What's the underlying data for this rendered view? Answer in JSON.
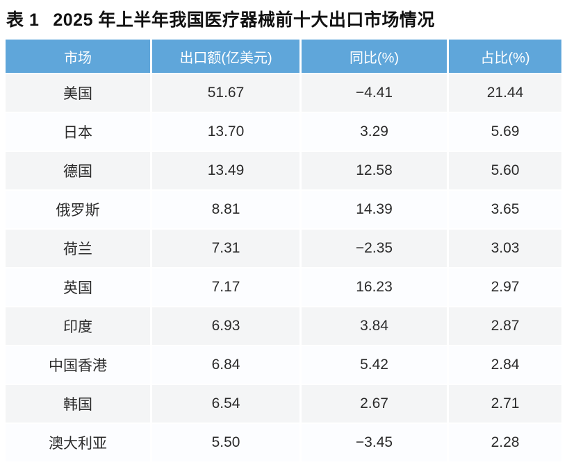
{
  "chart_data": {
    "type": "table",
    "caption_label": "表 1",
    "title": "2025 年上半年我国医疗器械前十大出口市场情况",
    "columns": [
      "市场",
      "出口额(亿美元)",
      "同比(%)",
      "占比(%)"
    ],
    "rows": [
      [
        "美国",
        "51.67",
        "−4.41",
        "21.44"
      ],
      [
        "日本",
        "13.70",
        "3.29",
        "5.69"
      ],
      [
        "德国",
        "13.49",
        "12.58",
        "5.60"
      ],
      [
        "俄罗斯",
        "8.81",
        "14.39",
        "3.65"
      ],
      [
        "荷兰",
        "7.31",
        "−2.35",
        "3.03"
      ],
      [
        "英国",
        "7.17",
        "16.23",
        "2.97"
      ],
      [
        "印度",
        "6.93",
        "3.84",
        "2.87"
      ],
      [
        "中国香港",
        "6.84",
        "5.42",
        "2.84"
      ],
      [
        "韩国",
        "6.54",
        "2.67",
        "2.71"
      ],
      [
        "澳大利亚",
        "5.50",
        "−3.45",
        "2.28"
      ]
    ]
  },
  "colors": {
    "header_bg": "#5fa6da",
    "header_text": "#ffffff",
    "row_odd_bg": "#f4f5f6",
    "row_even_bg": "#fcfdff",
    "body_text": "#2b2b2b",
    "title_text": "#111111",
    "page_bg": "#ffffff"
  }
}
